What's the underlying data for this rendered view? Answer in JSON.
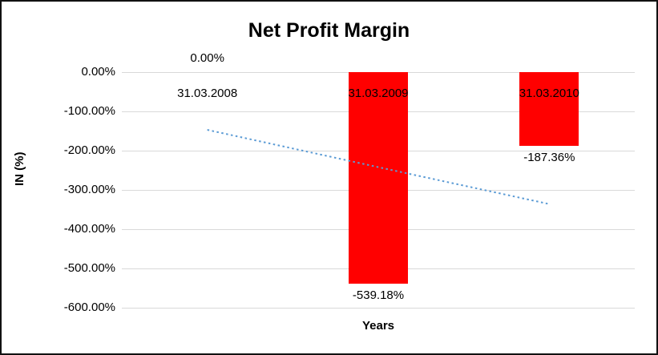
{
  "chart_data": {
    "type": "bar",
    "title": "Net Profit Margin",
    "categories": [
      "31.03.2008",
      "31.03.2009",
      "31.03.2010"
    ],
    "values": [
      0,
      -539.18,
      -187.36
    ],
    "data_labels": [
      "0.00%",
      "-539.18%",
      "-187.36%"
    ],
    "xlabel": "Years",
    "ylabel": "IN (%)",
    "ylim": [
      -600,
      0
    ],
    "ytick_labels": [
      "0.00%",
      "-100.00%",
      "-200.00%",
      "-300.00%",
      "-400.00%",
      "-500.00%",
      "-600.00%"
    ],
    "grid": true,
    "legend": "none",
    "bar_color": "#FF0000",
    "grid_color": "#D9D9D9",
    "trendline": {
      "style": "dotted",
      "color": "#5B9BD5",
      "values": [
        -147,
        -242,
        -336
      ]
    }
  }
}
